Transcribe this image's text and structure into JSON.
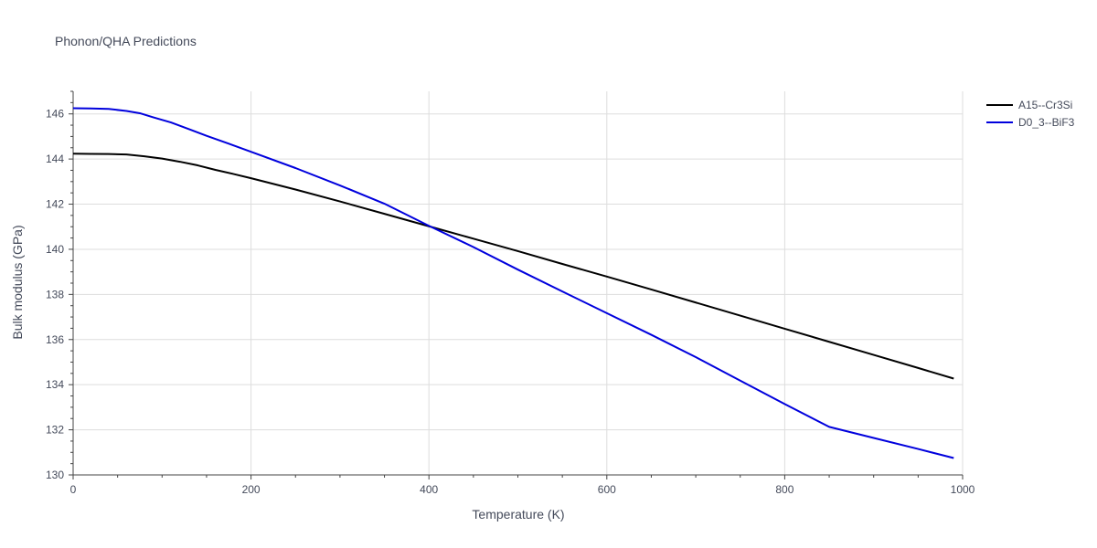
{
  "chart_data": {
    "type": "line",
    "title": "Phonon/QHA Predictions",
    "xlabel": "Temperature (K)",
    "ylabel": "Bulk modulus (GPa)",
    "xlim": [
      0,
      1000
    ],
    "ylim": [
      130,
      147
    ],
    "xticks": [
      0,
      200,
      400,
      600,
      800,
      1000
    ],
    "yticks": [
      130,
      132,
      134,
      136,
      138,
      140,
      142,
      144,
      146
    ],
    "grid": true,
    "legend_position": "top-right",
    "series": [
      {
        "name": "A15--Cr3Si",
        "color": "#000000",
        "x": [
          0,
          20,
          40,
          60,
          80,
          100,
          120,
          140,
          160,
          180,
          200,
          250,
          300,
          350,
          400,
          450,
          500,
          550,
          600,
          650,
          700,
          750,
          800,
          850,
          900,
          950,
          990
        ],
        "y": [
          144.24,
          144.23,
          144.22,
          144.2,
          144.12,
          144.02,
          143.88,
          143.72,
          143.52,
          143.34,
          143.15,
          142.65,
          142.12,
          141.57,
          141.02,
          140.47,
          139.92,
          139.35,
          138.79,
          138.22,
          137.64,
          137.06,
          136.48,
          135.9,
          135.32,
          134.74,
          134.27
        ]
      },
      {
        "name": "D0_3--BiF3",
        "color": "#0000dd",
        "x": [
          0,
          20,
          40,
          60,
          75,
          90,
          110,
          130,
          150,
          175,
          200,
          250,
          300,
          350,
          400,
          450,
          500,
          550,
          600,
          650,
          700,
          750,
          800,
          850,
          900,
          950,
          990
        ],
        "y": [
          146.25,
          146.24,
          146.22,
          146.13,
          146.03,
          145.85,
          145.62,
          145.33,
          145.03,
          144.68,
          144.32,
          143.6,
          142.83,
          142.02,
          141.04,
          140.1,
          139.1,
          138.13,
          137.17,
          136.21,
          135.22,
          134.18,
          133.14,
          132.13,
          131.64,
          131.15,
          130.75
        ]
      }
    ]
  }
}
